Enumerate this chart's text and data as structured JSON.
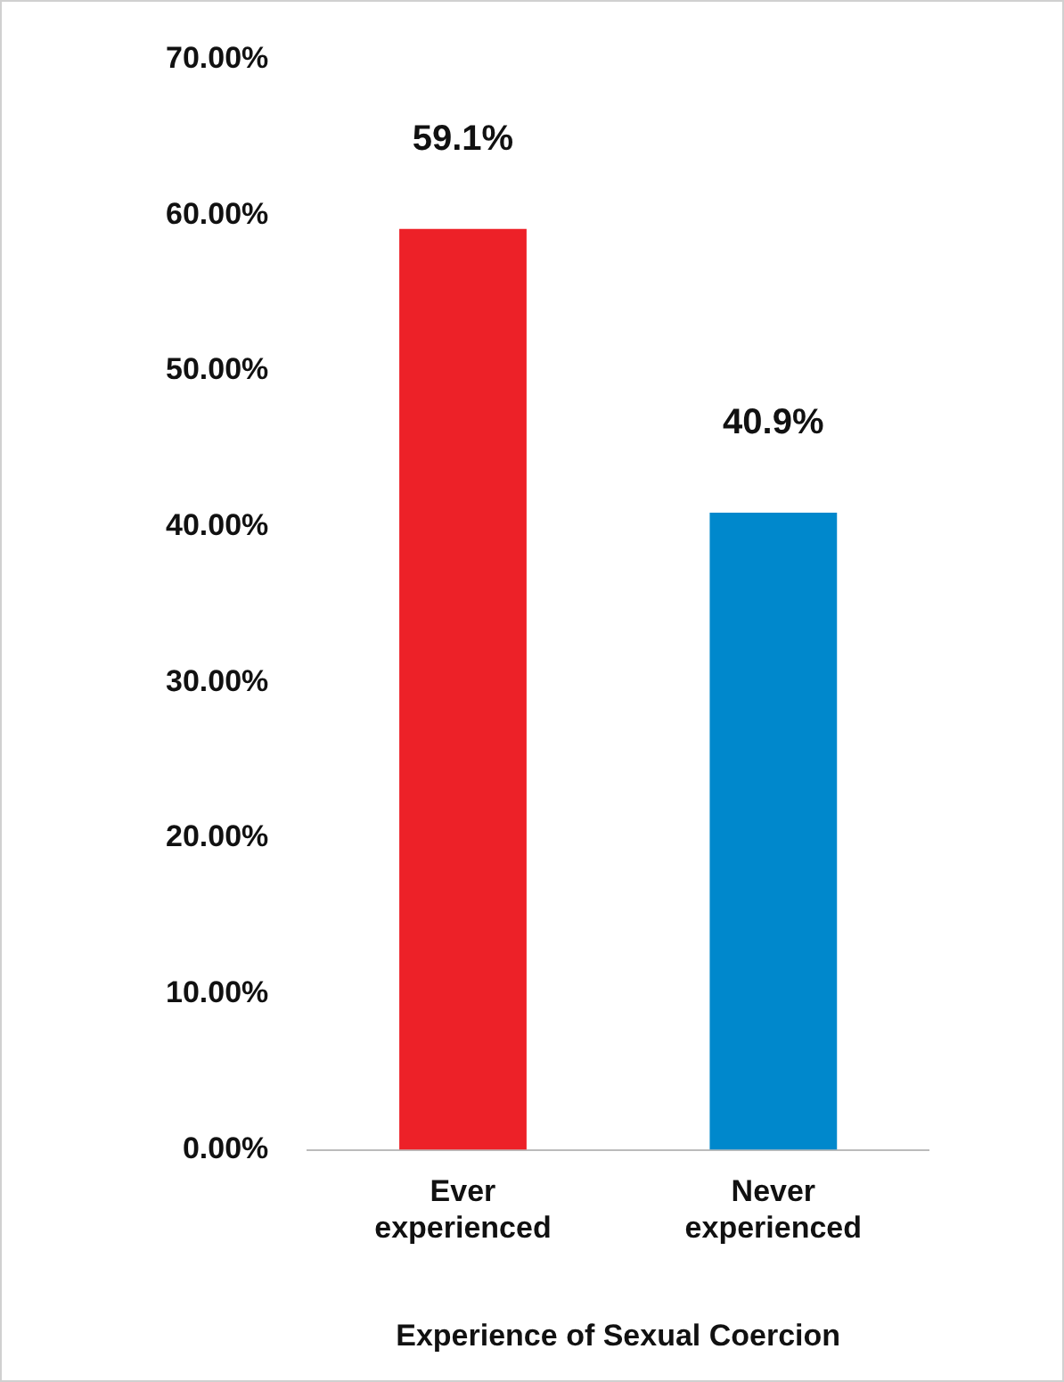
{
  "chart_data": {
    "type": "bar",
    "xlabel": "Experience of Sexual Coercion",
    "categories": [
      "Ever experienced",
      "Never experienced"
    ],
    "values": [
      59.1,
      40.9
    ],
    "colors": [
      "#ed2128",
      "#0088cc"
    ],
    "value_labels": [
      "59.1%",
      "40.9%"
    ],
    "ylim": [
      0,
      70
    ],
    "yticks": [
      {
        "value": 0,
        "label": "0.00%"
      },
      {
        "value": 10,
        "label": "10.00%"
      },
      {
        "value": 20,
        "label": "20.00%"
      },
      {
        "value": 30,
        "label": "30.00%"
      },
      {
        "value": 40,
        "label": "40.00%"
      },
      {
        "value": 50,
        "label": "50.00%"
      },
      {
        "value": 60,
        "label": "60.00%"
      },
      {
        "value": 70,
        "label": "70.00%"
      }
    ],
    "grid": false,
    "legend": false
  }
}
